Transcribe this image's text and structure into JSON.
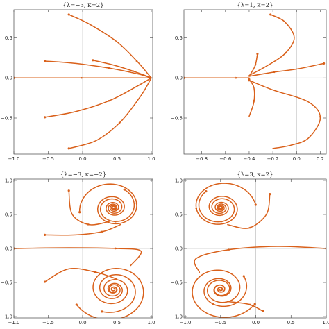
{
  "colors": {
    "trajectory": "#d9601a",
    "frame": "#444444",
    "axis": "#c8c8c8"
  },
  "chart_data": [
    {
      "type": "line",
      "title": "{λ=−3, κ=2}",
      "xlim": [
        -1.0,
        1.02
      ],
      "ylim": [
        -0.95,
        0.85
      ],
      "xticks": [
        -1.0,
        -0.5,
        0.0,
        0.5,
        1.0
      ],
      "xtick_labels": [
        "−1.0",
        "−0.5",
        "0.0",
        "0.5",
        "1.0"
      ],
      "yticks": [
        -0.5,
        0.0,
        0.5
      ],
      "ytick_labels": [
        "−0.5",
        "0.0",
        "0.5"
      ],
      "grid": false,
      "series": [
        {
          "points": [
            [
              -0.2,
              0.79
            ],
            [
              0.1,
              0.67
            ],
            [
              0.5,
              0.45
            ],
            [
              0.8,
              0.2
            ],
            [
              0.95,
              0.05
            ],
            [
              1.0,
              0.0
            ]
          ]
        },
        {
          "points": [
            [
              -0.55,
              0.21
            ],
            [
              -0.1,
              0.18
            ],
            [
              0.4,
              0.12
            ],
            [
              0.8,
              0.05
            ],
            [
              1.0,
              0.0
            ]
          ]
        },
        {
          "points": [
            [
              0.15,
              0.22
            ],
            [
              0.45,
              0.16
            ],
            [
              0.75,
              0.08
            ],
            [
              1.0,
              0.0
            ]
          ]
        },
        {
          "points": [
            [
              -1.0,
              0.0
            ],
            [
              -0.5,
              0.0
            ],
            [
              0.0,
              0.0
            ],
            [
              0.5,
              0.0
            ],
            [
              1.0,
              0.0
            ]
          ]
        },
        {
          "points": [
            [
              -0.55,
              -0.49
            ],
            [
              -0.1,
              -0.42
            ],
            [
              0.4,
              -0.28
            ],
            [
              0.8,
              -0.1
            ],
            [
              1.0,
              0.0
            ]
          ]
        },
        {
          "points": [
            [
              -0.2,
              -0.88
            ],
            [
              0.2,
              -0.78
            ],
            [
              0.55,
              -0.55
            ],
            [
              0.85,
              -0.22
            ],
            [
              1.0,
              0.0
            ]
          ]
        }
      ]
    },
    {
      "type": "line",
      "title": "{λ=1, κ=2}",
      "xlim": [
        -0.95,
        0.25
      ],
      "ylim": [
        -0.95,
        0.85
      ],
      "xticks": [
        -0.8,
        -0.6,
        -0.4,
        -0.2,
        0.0,
        0.2
      ],
      "xtick_labels": [
        "−0.8",
        "−0.6",
        "−0.4",
        "−0.2",
        "0.0",
        "0.2"
      ],
      "yticks": [
        -0.5,
        0.0,
        0.5
      ],
      "ytick_labels": [
        "−0.5",
        "0.0",
        "0.5"
      ],
      "grid": false,
      "series": [
        {
          "points": [
            [
              -0.22,
              0.79
            ],
            [
              -0.1,
              0.7
            ],
            [
              -0.02,
              0.5
            ],
            [
              -0.1,
              0.3
            ],
            [
              -0.25,
              0.15
            ],
            [
              -0.4,
              0.03
            ]
          ]
        },
        {
          "points": [
            [
              -0.33,
              0.3
            ],
            [
              -0.35,
              0.15
            ],
            [
              -0.4,
              0.02
            ]
          ]
        },
        {
          "points": [
            [
              0.23,
              0.18
            ],
            [
              0.0,
              0.11
            ],
            [
              -0.2,
              0.07
            ],
            [
              -0.4,
              0.02
            ]
          ]
        },
        {
          "points": [
            [
              -0.95,
              0.0
            ],
            [
              -0.7,
              0.0
            ],
            [
              -0.5,
              0.0
            ],
            [
              -0.4,
              0.0
            ]
          ]
        },
        {
          "points": [
            [
              -0.4,
              -0.02
            ],
            [
              -0.36,
              -0.12
            ],
            [
              -0.36,
              -0.3
            ],
            [
              -0.4,
              -0.48
            ]
          ]
        },
        {
          "points": [
            [
              -0.4,
              -0.03
            ],
            [
              -0.2,
              -0.15
            ],
            [
              0.1,
              -0.3
            ],
            [
              0.2,
              -0.5
            ],
            [
              0.1,
              -0.75
            ],
            [
              -0.05,
              -0.84
            ],
            [
              -0.2,
              -0.88
            ]
          ]
        }
      ]
    },
    {
      "type": "line",
      "title": "{λ=−3, κ=−2}",
      "xlim": [
        -1.0,
        1.02
      ],
      "ylim": [
        -1.02,
        1.02
      ],
      "xticks": [
        -1.0,
        -0.5,
        0.0,
        0.5,
        1.0
      ],
      "xtick_labels": [
        "−1.0",
        "−0.5",
        "0.0",
        "0.5",
        "1.0"
      ],
      "yticks": [
        -1.0,
        -0.5,
        0.0,
        0.5,
        1.0
      ],
      "ytick_labels": [
        "−1.0",
        "−0.5",
        "0.0",
        "0.5",
        "1.0"
      ],
      "grid": false,
      "series": [
        {
          "spiral": {
            "cx": 0.45,
            "cy": 0.6,
            "r0": 0.5,
            "theta0": 3.3,
            "turns": 4.2,
            "dir": -1
          }
        },
        {
          "spiral": {
            "cx": 0.45,
            "cy": 0.6,
            "r0": 0.35,
            "theta0": 1.1,
            "turns": 3.5,
            "dir": -1
          }
        },
        {
          "spiral": {
            "cx": 0.45,
            "cy": -0.6,
            "r0": 0.6,
            "theta0": 3.6,
            "turns": 4.2,
            "dir": 1
          }
        },
        {
          "spiral": {
            "cx": 0.45,
            "cy": -0.6,
            "r0": 0.42,
            "theta0": 4.3,
            "turns": 3.5,
            "dir": 1
          }
        },
        {
          "points": [
            [
              -0.2,
              0.85
            ],
            [
              -0.15,
              0.5
            ],
            [
              0.1,
              0.35
            ],
            [
              0.4,
              0.4
            ]
          ]
        },
        {
          "points": [
            [
              -0.55,
              0.2
            ],
            [
              -0.1,
              0.2
            ],
            [
              0.3,
              0.25
            ],
            [
              0.55,
              0.35
            ]
          ]
        },
        {
          "points": [
            [
              -1.0,
              0.0
            ],
            [
              -0.2,
              0.01
            ],
            [
              0.5,
              0.0
            ],
            [
              0.85,
              -0.04
            ],
            [
              0.7,
              -0.25
            ]
          ]
        },
        {
          "points": [
            [
              -0.55,
              -0.49
            ],
            [
              -0.2,
              -0.3
            ],
            [
              0.2,
              -0.35
            ],
            [
              0.5,
              -0.45
            ]
          ]
        }
      ]
    },
    {
      "type": "line",
      "title": "{λ=3, κ=2}",
      "xlim": [
        -1.02,
        1.0
      ],
      "ylim": [
        -1.02,
        1.02
      ],
      "xticks": [
        -1.0,
        -0.5,
        0.0,
        0.5,
        1.0
      ],
      "xtick_labels": [
        "−1.0",
        "−0.5",
        "0.0",
        "0.5",
        "1.0"
      ],
      "yticks": [
        -1.0,
        -0.5,
        0.0,
        0.5,
        1.0
      ],
      "ytick_labels": [
        "−1.0",
        "−0.5",
        "0.0",
        "0.5",
        "1.0"
      ],
      "grid": false,
      "series": [
        {
          "spiral": {
            "cx": -0.5,
            "cy": 0.6,
            "r0": 0.5,
            "theta0": 0.1,
            "turns": 4.2,
            "dir": 1
          }
        },
        {
          "spiral": {
            "cx": -0.5,
            "cy": 0.6,
            "r0": 0.35,
            "theta0": 2.2,
            "turns": 3.5,
            "dir": 1
          }
        },
        {
          "spiral": {
            "cx": -0.5,
            "cy": -0.6,
            "r0": 0.55,
            "theta0": 5.8,
            "turns": 4.2,
            "dir": -1
          }
        },
        {
          "spiral": {
            "cx": -0.5,
            "cy": -0.6,
            "r0": 0.4,
            "theta0": 0.6,
            "turns": 3.5,
            "dir": -1
          }
        },
        {
          "points": [
            [
              0.2,
              0.8
            ],
            [
              0.15,
              0.5
            ],
            [
              -0.1,
              0.3
            ],
            [
              -0.4,
              0.35
            ]
          ]
        },
        {
          "points": [
            [
              1.0,
              0.0
            ],
            [
              0.3,
              0.03
            ],
            [
              -0.4,
              -0.02
            ],
            [
              -0.85,
              -0.15
            ],
            [
              -0.8,
              -0.35
            ]
          ]
        },
        {
          "points": [
            [
              0.1,
              -0.92
            ],
            [
              -0.1,
              -0.82
            ],
            [
              -0.4,
              -0.78
            ]
          ]
        }
      ]
    }
  ]
}
